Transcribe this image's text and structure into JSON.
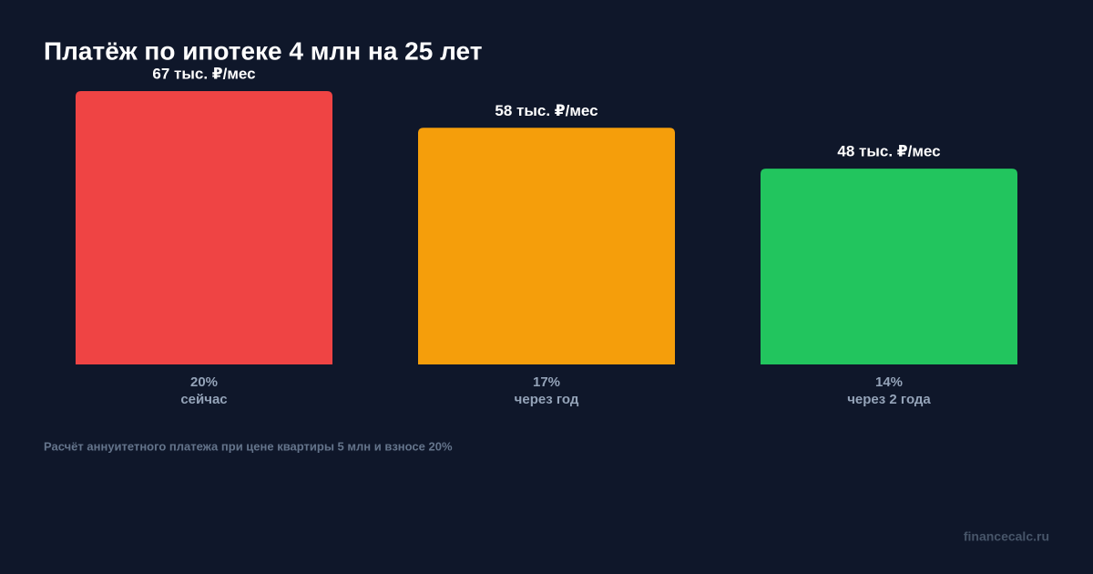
{
  "chart_data": {
    "type": "bar",
    "title": "Платёж по ипотеке 4 млн на 25 лет",
    "categories": [
      "сейчас",
      "через год",
      "через 2 года"
    ],
    "rates": [
      "20%",
      "17%",
      "14%"
    ],
    "values": [
      67,
      58,
      48
    ],
    "value_labels": [
      "67 тыс. ₽/мес",
      "58 тыс. ₽/мес",
      "48 тыс. ₽/мес"
    ],
    "colors": [
      "#ef4444",
      "#f59e0b",
      "#22c55e"
    ],
    "note": "Расчёт аннуитетного платежа при цене квартиры 5 млн и взносе 20%",
    "source": "financecalc.ru"
  }
}
